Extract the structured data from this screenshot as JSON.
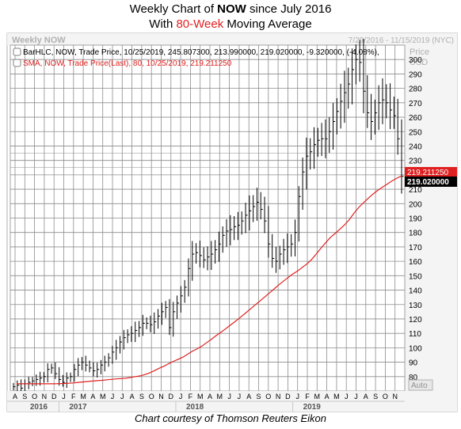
{
  "title": {
    "line1_pre": "Weekly Chart of ",
    "line1_bold": "NOW",
    "line1_post": " since July 2016",
    "line2_pre": "With ",
    "line2_red": "80-Week",
    "line2_post": " Moving Average"
  },
  "panel": {
    "name": "Weekly NOW",
    "date_range": "7/29/2016 - 11/15/2019 (NYC)",
    "legend_bar": "BarHLC, NOW, Trade Price, 10/25/2019, 245.807300, 213.990000, 219.020000, -9.320000, (-4.08%),",
    "legend_sma": "SMA, NOW, Trade Price(Last), 80, 10/25/2019, 219.211250",
    "price_unit_1": "Price",
    "price_unit_2": "USD",
    "auto_label": "Auto",
    "sma_tag": "219.211250",
    "last_tag": "219.020000"
  },
  "caption": "Chart courtesy of Thomson Reuters Eikon",
  "colors": {
    "bars": "#000000",
    "sma": "#e02020",
    "grid": "#8c8c8c",
    "axis_bg": "#f0f0f0"
  },
  "chart_data": {
    "type": "line",
    "series": [
      {
        "name": "NOW",
        "style": "hlc-bar",
        "values": [
          73,
          74,
          72,
          75,
          76,
          77,
          78,
          79,
          80,
          85,
          86,
          82,
          78,
          76,
          79,
          80,
          85,
          88,
          90,
          88,
          86,
          84,
          85,
          88,
          90,
          93,
          97,
          100,
          104,
          107,
          109,
          110,
          112,
          114,
          117,
          117,
          116,
          118,
          122,
          125,
          128,
          114,
          125,
          131,
          136,
          142,
          155,
          165,
          166,
          164,
          161,
          163,
          165,
          168,
          172,
          178,
          181,
          182,
          184,
          185,
          188,
          192,
          195,
          198,
          201,
          196,
          188,
          172,
          162,
          160,
          165,
          168,
          170,
          172,
          180,
          205,
          222,
          233,
          236,
          241,
          244,
          245,
          245,
          250,
          257,
          264,
          271,
          277,
          283,
          293,
          300,
          298,
          278,
          263,
          257,
          263,
          270,
          272,
          270,
          265,
          261,
          245,
          219
        ]
      },
      {
        "name": "SMA",
        "style": "line",
        "values": [
          75.0,
          75.0,
          75.0,
          75.0,
          75.0,
          75.0,
          75.0,
          75.0,
          75.0,
          75.1,
          75.2,
          75.4,
          75.6,
          76.0,
          76.3,
          76.6,
          76.9,
          77.2,
          77.4,
          77.8,
          78.1,
          78.4,
          78.6,
          78.9,
          79.4,
          80.0,
          80.5,
          81.4,
          82.6,
          84.1,
          85.8,
          87.2,
          89.0,
          90.6,
          92.0,
          93.5,
          95.6,
          97.7,
          99.3,
          101.2,
          103.6,
          105.9,
          108.5,
          110.8,
          113.2,
          115.8,
          118.3,
          120.9,
          123.6,
          126.4,
          129.2,
          131.9,
          134.7,
          137.5,
          140.3,
          143.2,
          145.9,
          148.4,
          151.0,
          153.0,
          155.5,
          158.0,
          161.0,
          164.9,
          169.0,
          172.8,
          176.5,
          179.3,
          182.2,
          185.3,
          188.9,
          193.4,
          197.4,
          200.7,
          203.8,
          206.7,
          209.3,
          211.5,
          213.6,
          215.8,
          217.7,
          219.2
        ]
      }
    ],
    "xlabel": "",
    "ylabel": "Price USD",
    "ylim": [
      70,
      310
    ],
    "y_ticks": [
      80,
      90,
      100,
      110,
      120,
      130,
      140,
      150,
      160,
      170,
      180,
      190,
      200,
      210,
      220,
      230,
      240,
      250,
      260,
      270,
      280,
      290,
      300
    ],
    "x_month_labels": [
      "A",
      "S",
      "O",
      "N",
      "D",
      "J",
      "F",
      "M",
      "A",
      "M",
      "J",
      "J",
      "A",
      "S",
      "O",
      "N",
      "D",
      "J",
      "F",
      "M",
      "A",
      "M",
      "J",
      "J",
      "A",
      "S",
      "O",
      "N",
      "D",
      "J",
      "F",
      "M",
      "A",
      "M",
      "J",
      "J",
      "A",
      "S",
      "O",
      "N"
    ],
    "x_year_labels": [
      "2016",
      "2017",
      "2018",
      "2019"
    ],
    "grid": true,
    "legend": "top-left"
  }
}
